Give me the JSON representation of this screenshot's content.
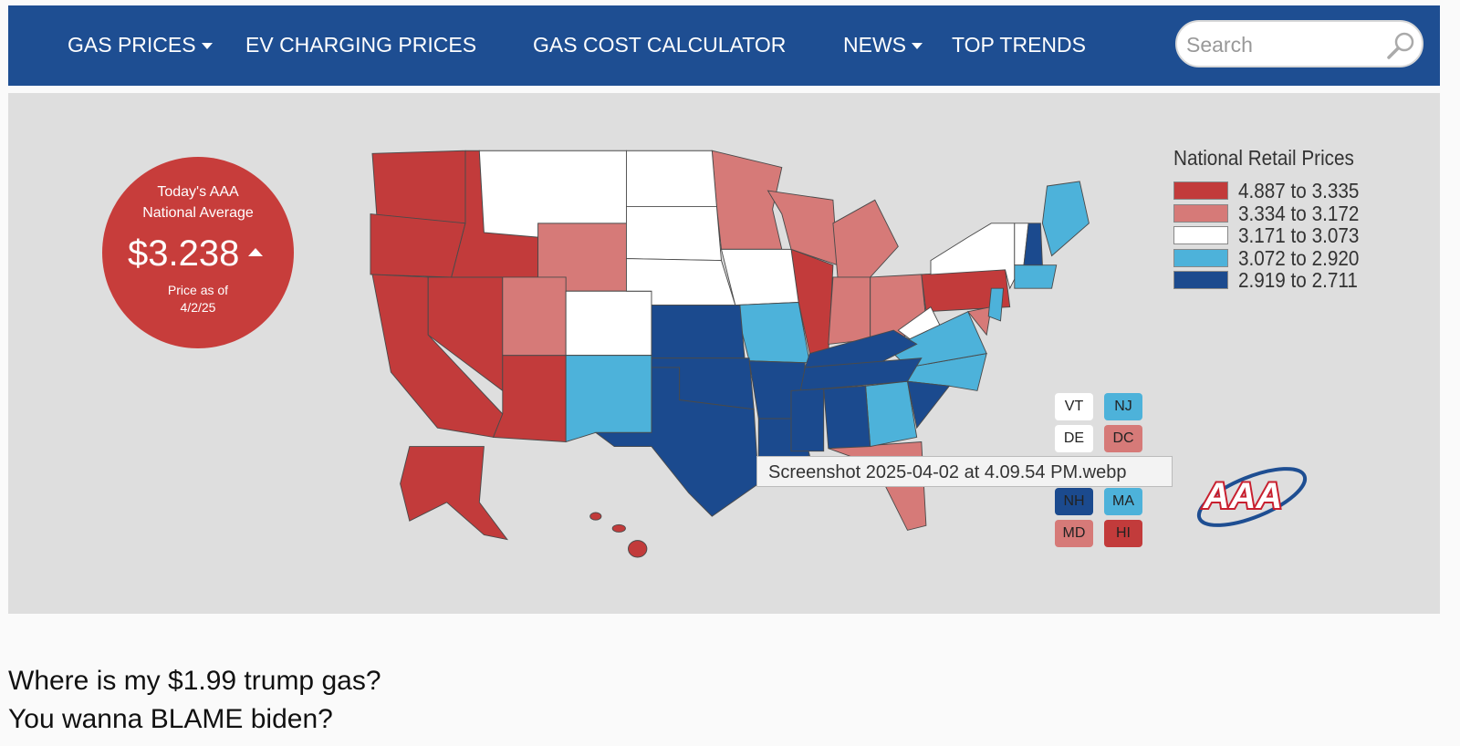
{
  "nav": {
    "items": [
      "GAS PRICES",
      "EV CHARGING PRICES",
      "GAS COST CALCULATOR",
      "NEWS",
      "TOP TRENDS"
    ],
    "search_placeholder": "Search"
  },
  "badge": {
    "line1": "Today's AAA",
    "line2": "National Average",
    "price": "$3.238",
    "date_line1": "Price as of",
    "date_line2": "4/2/25"
  },
  "legend": {
    "title": "National Retail Prices",
    "ranges": [
      {
        "label": "4.887 to 3.335",
        "color": "#c23b3b"
      },
      {
        "label": "3.334 to 3.172",
        "color": "#d67a78"
      },
      {
        "label": "3.171 to 3.073",
        "color": "#ffffff"
      },
      {
        "label": "3.072 to 2.920",
        "color": "#4db2da"
      },
      {
        "label": "2.919 to 2.711",
        "color": "#1b4a8e"
      }
    ]
  },
  "state_boxes": [
    {
      "label": "VT",
      "color": "#ffffff"
    },
    {
      "label": "NJ",
      "color": "#4db2da"
    },
    {
      "label": "DE",
      "color": "#ffffff"
    },
    {
      "label": "DC",
      "color": "#d67a78"
    },
    {
      "label": "NH",
      "color": "#1b4a8e"
    },
    {
      "label": "MA",
      "color": "#4db2da"
    },
    {
      "label": "MD",
      "color": "#d67a78"
    },
    {
      "label": "HI",
      "color": "#c23b3b"
    }
  ],
  "tooltip": "Screenshot 2025-04-02 at 4.09.54 PM.webp",
  "logo": "AAA",
  "caption": [
    "Where is my $1.99 trump gas?",
    "You wanna BLAME biden?"
  ]
}
